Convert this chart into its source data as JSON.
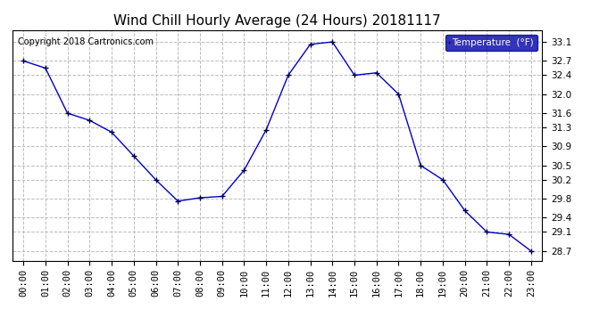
{
  "title": "Wind Chill Hourly Average (24 Hours) 20181117",
  "copyright": "Copyright 2018 Cartronics.com",
  "legend_label": "Temperature  (°F)",
  "hours": [
    "00:00",
    "01:00",
    "02:00",
    "03:00",
    "04:00",
    "05:00",
    "06:00",
    "07:00",
    "08:00",
    "09:00",
    "10:00",
    "11:00",
    "12:00",
    "13:00",
    "14:00",
    "15:00",
    "16:00",
    "17:00",
    "18:00",
    "19:00",
    "20:00",
    "21:00",
    "22:00",
    "23:00"
  ],
  "values": [
    32.7,
    32.55,
    31.6,
    31.45,
    31.2,
    30.7,
    30.2,
    29.75,
    29.82,
    29.85,
    30.4,
    31.25,
    32.4,
    33.05,
    33.1,
    32.4,
    32.45,
    32.0,
    30.5,
    30.2,
    29.55,
    29.1,
    29.05,
    28.7
  ],
  "ylim_min": 28.5,
  "ylim_max": 33.35,
  "yticks": [
    28.7,
    29.1,
    29.4,
    29.8,
    30.2,
    30.5,
    30.9,
    31.3,
    31.6,
    32.0,
    32.4,
    32.7,
    33.1
  ],
  "line_color": "#0000cc",
  "marker": "+",
  "marker_color": "#000044",
  "bg_color": "#ffffff",
  "plot_bg_color": "#ffffff",
  "grid_color": "#bbbbbb",
  "title_fontsize": 11,
  "copyright_fontsize": 7,
  "legend_bg": "#0000aa",
  "legend_fg": "#ffffff"
}
